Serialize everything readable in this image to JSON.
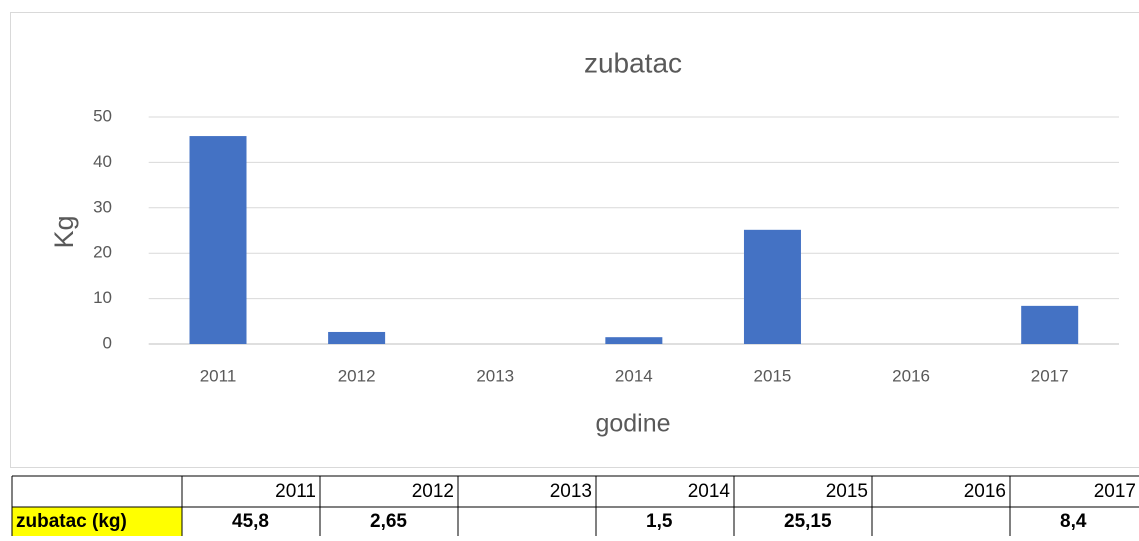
{
  "chart_data": {
    "type": "bar",
    "title": "zubatac",
    "x_label": "godine",
    "y_label": "Kg",
    "categories": [
      "2011",
      "2012",
      "2013",
      "2014",
      "2015",
      "2016",
      "2017"
    ],
    "values": [
      45.8,
      2.65,
      null,
      1.5,
      25.15,
      null,
      8.4
    ],
    "value_labels": [
      "45,8",
      "2,65",
      null,
      "1,5",
      "25,15",
      null,
      "8,4"
    ],
    "color": "#4472c4",
    "ylim": [
      0,
      50
    ],
    "yticks": [
      0,
      10,
      20,
      30,
      40,
      50
    ],
    "grid": true
  },
  "table": {
    "row_label": "zubatac (kg)"
  }
}
